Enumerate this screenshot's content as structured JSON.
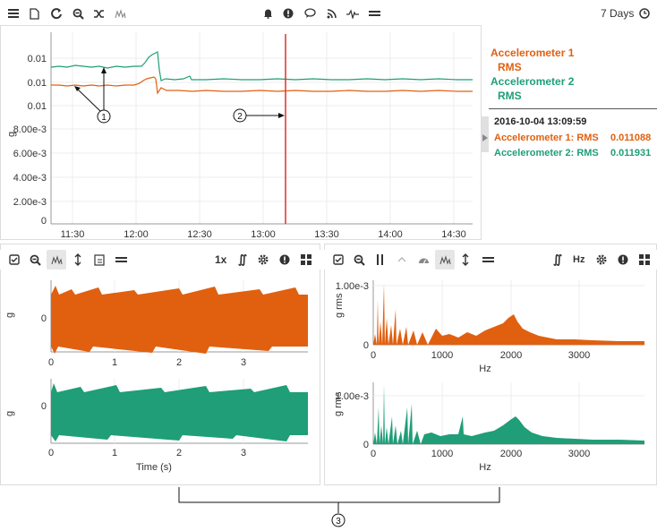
{
  "top_toolbar": {
    "time_range": "7 Days"
  },
  "main_chart": {
    "ylabel": "g",
    "yticks": [
      "0.01",
      "0.01",
      "0.01",
      "8.00e-3",
      "6.00e-3",
      "4.00e-3",
      "2.00e-3",
      "0"
    ],
    "xticks": [
      "11:30",
      "12:00",
      "12:30",
      "13:00",
      "13:30",
      "14:00",
      "14:30"
    ]
  },
  "legend": {
    "series": [
      {
        "name": "Accelerometer 1",
        "sub": "RMS",
        "color": "#e06010"
      },
      {
        "name": "Accelerometer 2",
        "sub": "RMS",
        "color": "#1f9e78"
      }
    ],
    "cursor_time": "2016-10-04 13:09:59",
    "readouts": [
      {
        "label": "Accelerometer 1: RMS",
        "value": "0.011088",
        "color": "#e06010"
      },
      {
        "label": "Accelerometer 2: RMS",
        "value": "0.011931",
        "color": "#1f9e78"
      }
    ]
  },
  "callouts": {
    "one": "1",
    "two": "2",
    "three": "3"
  },
  "time_panel": {
    "speed_label": "1x",
    "ylabel_top": "g",
    "ylabel_bottom": "g",
    "ytick": "0",
    "xticks": [
      "0",
      "1",
      "2",
      "3"
    ],
    "xlabel": "Time (s)"
  },
  "fft_panel": {
    "hz_label": "Hz",
    "ylabel": "g rms",
    "yticks": [
      "1.00e-3",
      "0"
    ],
    "xticks": [
      "0",
      "1000",
      "2000",
      "3000"
    ],
    "xlabel": "Hz"
  },
  "colors": {
    "orange": "#e06010",
    "green": "#1f9e78",
    "cursor": "#e0302a"
  }
}
